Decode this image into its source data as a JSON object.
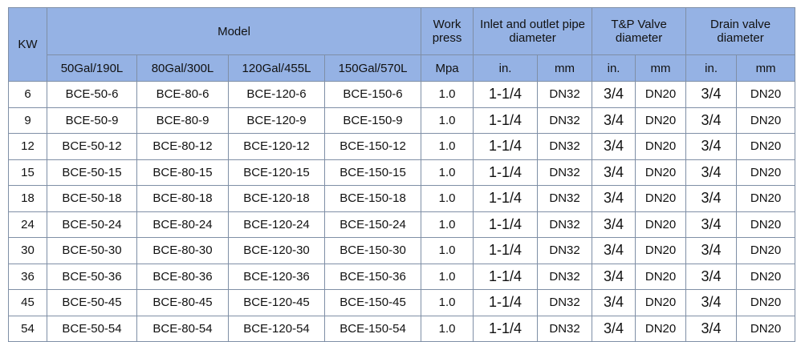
{
  "header": {
    "kw": "KW",
    "model": "Model",
    "work_press": "Work press",
    "inlet_outlet": "Inlet and outlet pipe diameter",
    "tp_valve": "T&P Valve diameter",
    "drain_valve": "Drain valve diameter",
    "sub": {
      "gal50": "50Gal/190L",
      "gal80": "80Gal/300L",
      "gal120": "120Gal/455L",
      "gal150": "150Gal/570L",
      "mpa": "Mpa",
      "in1": "in.",
      "mm1": "mm",
      "in2": "in.",
      "mm2": "mm",
      "in3": "in.",
      "mm3": "mm"
    }
  },
  "rows": [
    {
      "kw": "6",
      "m50": "BCE-50-6",
      "m80": "BCE-80-6",
      "m120": "BCE-120-6",
      "m150": "BCE-150-6",
      "press": "1.0",
      "pipe_in": "1-1/4",
      "pipe_mm": "DN32",
      "tp_in": "3/4",
      "tp_mm": "DN20",
      "drain_in": "3/4",
      "drain_mm": "DN20"
    },
    {
      "kw": "9",
      "m50": "BCE-50-9",
      "m80": "BCE-80-9",
      "m120": "BCE-120-9",
      "m150": "BCE-150-9",
      "press": "1.0",
      "pipe_in": "1-1/4",
      "pipe_mm": "DN32",
      "tp_in": "3/4",
      "tp_mm": "DN20",
      "drain_in": "3/4",
      "drain_mm": "DN20"
    },
    {
      "kw": "12",
      "m50": "BCE-50-12",
      "m80": "BCE-80-12",
      "m120": "BCE-120-12",
      "m150": "BCE-150-12",
      "press": "1.0",
      "pipe_in": "1-1/4",
      "pipe_mm": "DN32",
      "tp_in": "3/4",
      "tp_mm": "DN20",
      "drain_in": "3/4",
      "drain_mm": "DN20"
    },
    {
      "kw": "15",
      "m50": "BCE-50-15",
      "m80": "BCE-80-15",
      "m120": "BCE-120-15",
      "m150": "BCE-150-15",
      "press": "1.0",
      "pipe_in": "1-1/4",
      "pipe_mm": "DN32",
      "tp_in": "3/4",
      "tp_mm": "DN20",
      "drain_in": "3/4",
      "drain_mm": "DN20"
    },
    {
      "kw": "18",
      "m50": "BCE-50-18",
      "m80": "BCE-80-18",
      "m120": "BCE-120-18",
      "m150": "BCE-150-18",
      "press": "1.0",
      "pipe_in": "1-1/4",
      "pipe_mm": "DN32",
      "tp_in": "3/4",
      "tp_mm": "DN20",
      "drain_in": "3/4",
      "drain_mm": "DN20"
    },
    {
      "kw": "24",
      "m50": "BCE-50-24",
      "m80": "BCE-80-24",
      "m120": "BCE-120-24",
      "m150": "BCE-150-24",
      "press": "1.0",
      "pipe_in": "1-1/4",
      "pipe_mm": "DN32",
      "tp_in": "3/4",
      "tp_mm": "DN20",
      "drain_in": "3/4",
      "drain_mm": "DN20"
    },
    {
      "kw": "30",
      "m50": "BCE-50-30",
      "m80": "BCE-80-30",
      "m120": "BCE-120-30",
      "m150": "BCE-150-30",
      "press": "1.0",
      "pipe_in": "1-1/4",
      "pipe_mm": "DN32",
      "tp_in": "3/4",
      "tp_mm": "DN20",
      "drain_in": "3/4",
      "drain_mm": "DN20"
    },
    {
      "kw": "36",
      "m50": "BCE-50-36",
      "m80": "BCE-80-36",
      "m120": "BCE-120-36",
      "m150": "BCE-150-36",
      "press": "1.0",
      "pipe_in": "1-1/4",
      "pipe_mm": "DN32",
      "tp_in": "3/4",
      "tp_mm": "DN20",
      "drain_in": "3/4",
      "drain_mm": "DN20"
    },
    {
      "kw": "45",
      "m50": "BCE-50-45",
      "m80": "BCE-80-45",
      "m120": "BCE-120-45",
      "m150": "BCE-150-45",
      "press": "1.0",
      "pipe_in": "1-1/4",
      "pipe_mm": "DN32",
      "tp_in": "3/4",
      "tp_mm": "DN20",
      "drain_in": "3/4",
      "drain_mm": "DN20"
    },
    {
      "kw": "54",
      "m50": "BCE-50-54",
      "m80": "BCE-80-54",
      "m120": "BCE-120-54",
      "m150": "BCE-150-54",
      "press": "1.0",
      "pipe_in": "1-1/4",
      "pipe_mm": "DN32",
      "tp_in": "3/4",
      "tp_mm": "DN20",
      "drain_in": "3/4",
      "drain_mm": "DN20"
    }
  ]
}
